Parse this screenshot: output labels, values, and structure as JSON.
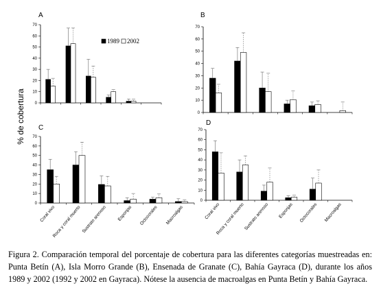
{
  "ylabel": "% de cobertura",
  "caption": "Figura 2. Comparación temporal del porcentaje de cobertura para las diferentes categorías muestreadas en: Punta Betín (A), Isla Morro Grande (B), Ensenada de Granate (C), Bahía Gayraca (D), durante los años 1989 y 2002 (1992 y 2002 en Gayraca). Nótese la ausencia de macroalgas en Punta Betín y Bahía Gayraca.",
  "legend": {
    "s1": "1989",
    "s2": "2002",
    "s1_color": "#000000",
    "s2_color": "#ffffff"
  },
  "chart_data": [
    {
      "type": "bar",
      "panel": "A",
      "categories": [
        "Coral vivo",
        "Roca y coral muerto",
        "Sustrato arenoso",
        "Esponjas",
        "Octocorales",
        "Macroalgas"
      ],
      "ylim": [
        0,
        70
      ],
      "yticks": [
        0,
        10,
        20,
        30,
        40,
        50,
        60,
        70
      ],
      "series": [
        {
          "name": "1989",
          "values": [
            21,
            51,
            24,
            5,
            1.5,
            0
          ],
          "errors": [
            9,
            16,
            15,
            2,
            2,
            0
          ]
        },
        {
          "name": "2002",
          "values": [
            15,
            53,
            23,
            10,
            1.5,
            0
          ],
          "errors": [
            7,
            14,
            10,
            2,
            2,
            0
          ]
        }
      ]
    },
    {
      "type": "bar",
      "panel": "B",
      "categories": [
        "Coral vivo",
        "Roca y coral muerto",
        "Sustrato arenoso",
        "Esponjas",
        "Octocorales",
        "Macroalgas"
      ],
      "ylim": [
        0,
        70
      ],
      "yticks": [
        0,
        10,
        20,
        30,
        40,
        50,
        60,
        70
      ],
      "series": [
        {
          "name": "1989",
          "values": [
            28,
            42,
            20,
            7,
            5.5,
            0
          ],
          "errors": [
            8,
            11,
            13,
            3,
            3,
            0
          ]
        },
        {
          "name": "2002",
          "values": [
            16,
            49,
            17,
            10.5,
            6.5,
            1.5
          ],
          "errors": [
            7,
            16,
            15,
            7,
            3,
            7
          ]
        }
      ]
    },
    {
      "type": "bar",
      "panel": "C",
      "categories": [
        "Coral vivo",
        "Roca y coral muerto",
        "Sustrato arenoso",
        "Esponjas",
        "Octocorales",
        "Macroalgas"
      ],
      "ylim": [
        0,
        70
      ],
      "yticks": [
        0,
        10,
        20,
        30,
        40,
        50,
        60,
        70
      ],
      "series": [
        {
          "name": "1989",
          "values": [
            35,
            40,
            19.5,
            2.5,
            4,
            1.5
          ],
          "errors": [
            11,
            14,
            9,
            3,
            2,
            3
          ]
        },
        {
          "name": "2002",
          "values": [
            20,
            50,
            18,
            4,
            5.5,
            1.5
          ],
          "errors": [
            8,
            14,
            10,
            6,
            4,
            2
          ]
        }
      ]
    },
    {
      "type": "bar",
      "panel": "D",
      "categories": [
        "Coral vivo",
        "Roca y coral muerto",
        "Sustrato arenoso",
        "Esponjas",
        "Octocorales",
        "Macroalgas"
      ],
      "ylim": [
        0,
        70
      ],
      "yticks": [
        0,
        10,
        20,
        30,
        40,
        50,
        60,
        70
      ],
      "series": [
        {
          "name": "1992",
          "values": [
            48,
            28,
            9,
            2.5,
            11,
            0
          ],
          "errors": [
            11,
            12,
            6,
            2,
            11,
            0
          ]
        },
        {
          "name": "2002",
          "values": [
            27,
            35,
            18,
            3,
            17,
            0
          ],
          "errors": [
            20,
            9,
            14,
            2,
            13,
            0
          ]
        }
      ]
    }
  ]
}
